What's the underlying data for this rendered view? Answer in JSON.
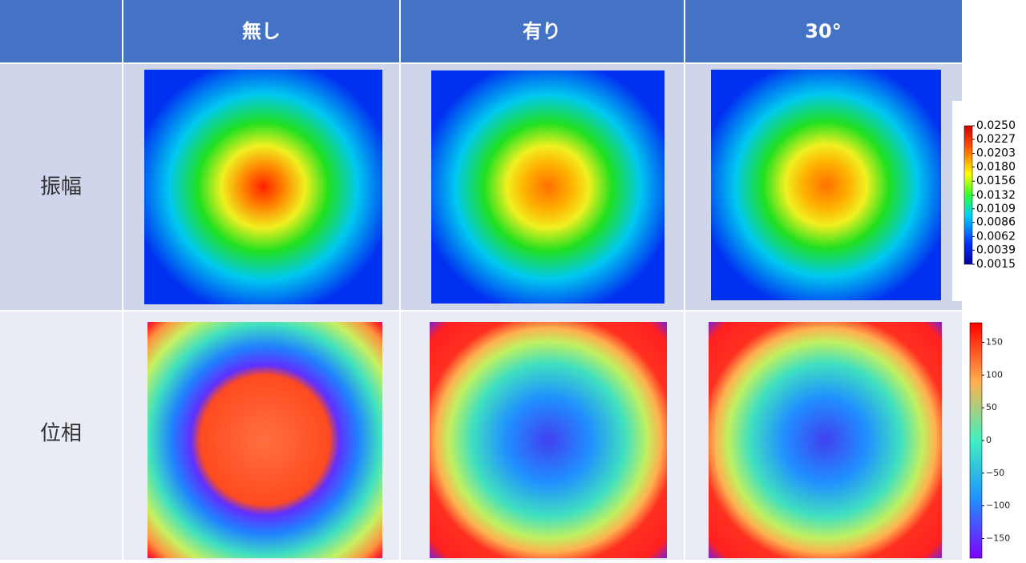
{
  "table": {
    "header": [
      "無し",
      "有り",
      "30°"
    ],
    "rows": [
      "振幅",
      "位相"
    ]
  },
  "colorbars": {
    "amplitude": {
      "lim": [
        0.0015,
        0.025
      ],
      "ticks": [
        {
          "value": 0.025,
          "label": "0.0250"
        },
        {
          "value": 0.0227,
          "label": "0.0227"
        },
        {
          "value": 0.0203,
          "label": "0.0203"
        },
        {
          "value": 0.018,
          "label": "0.0180"
        },
        {
          "value": 0.0156,
          "label": "0.0156"
        },
        {
          "value": 0.0132,
          "label": "0.0132"
        },
        {
          "value": 0.0109,
          "label": "0.0109"
        },
        {
          "value": 0.0086,
          "label": "0.0086"
        },
        {
          "value": 0.0062,
          "label": "0.0062"
        },
        {
          "value": 0.0039,
          "label": "0.0039"
        },
        {
          "value": 0.0015,
          "label": "0.0015"
        }
      ]
    },
    "phase": {
      "lim": [
        -180,
        180
      ],
      "ticks": [
        150,
        100,
        50,
        0,
        {
          "value": -50,
          "label": "−50"
        },
        {
          "value": -100,
          "label": "−100"
        },
        {
          "value": -150,
          "label": "−150"
        }
      ]
    }
  }
}
